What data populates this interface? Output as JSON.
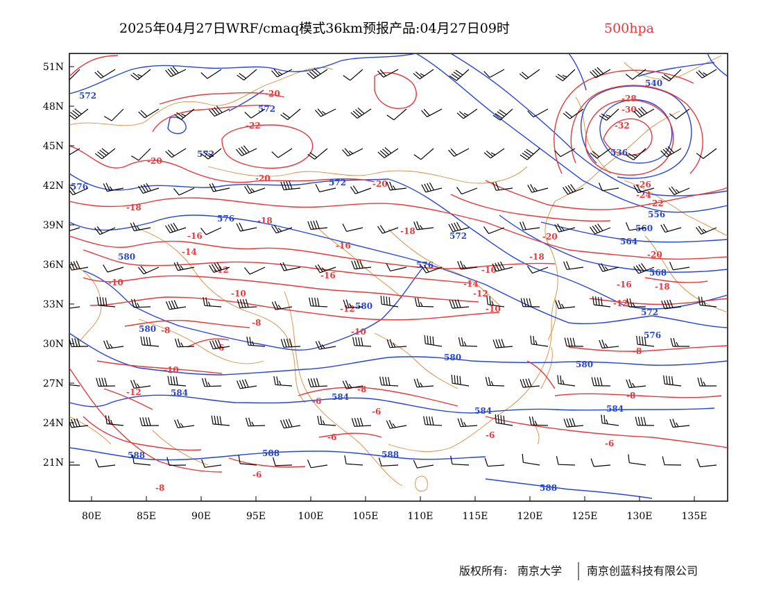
{
  "title": {
    "main": "2025年04月27日WRF/cmaq模式36km预报产品:04月27日09时",
    "level": "500hpa"
  },
  "axes": {
    "lat_ticks": [
      "51N",
      "48N",
      "45N",
      "42N",
      "39N",
      "36N",
      "33N",
      "30N",
      "27N",
      "24N",
      "21N"
    ],
    "lon_ticks": [
      "80E",
      "85E",
      "90E",
      "95E",
      "100E",
      "105E",
      "110E",
      "115E",
      "120E",
      "125E",
      "130E",
      "135E"
    ]
  },
  "temperature_labels": [
    "-20",
    "-22",
    "-20",
    "-20",
    "-20",
    "-28",
    "-30",
    "-32",
    "-26",
    "-24",
    "-22",
    "-18",
    "-18",
    "-18",
    "-16",
    "-16",
    "-14",
    "-16",
    "-20",
    "-18",
    "-16",
    "-20",
    "-18",
    "-16",
    "-14",
    "-12",
    "-10",
    "-12",
    "-10",
    "-8",
    "-6",
    "-10",
    "-8",
    "-12",
    "-12",
    "-10",
    "-8",
    "-6",
    "-6",
    "-6",
    "-6",
    "-8",
    "-10",
    "-8",
    "-6",
    "-6",
    "-8",
    "-12"
  ],
  "height_labels": [
    "572",
    "572",
    "572",
    "576",
    "572",
    "540",
    "536",
    "576",
    "572",
    "556",
    "560",
    "564",
    "576",
    "580",
    "568",
    "572",
    "580",
    "580",
    "580",
    "576",
    "580",
    "584",
    "584",
    "584",
    "584",
    "588",
    "588",
    "588",
    "588"
  ],
  "footer": {
    "copyright_label": "版权所有:",
    "org1": "南京大学",
    "org2": "南京创蓝科技有限公司"
  },
  "colors": {
    "temperature": "#e5383b",
    "height": "#2545d8",
    "coastline": "#d98a3a",
    "wind_barbs": "#000000"
  }
}
